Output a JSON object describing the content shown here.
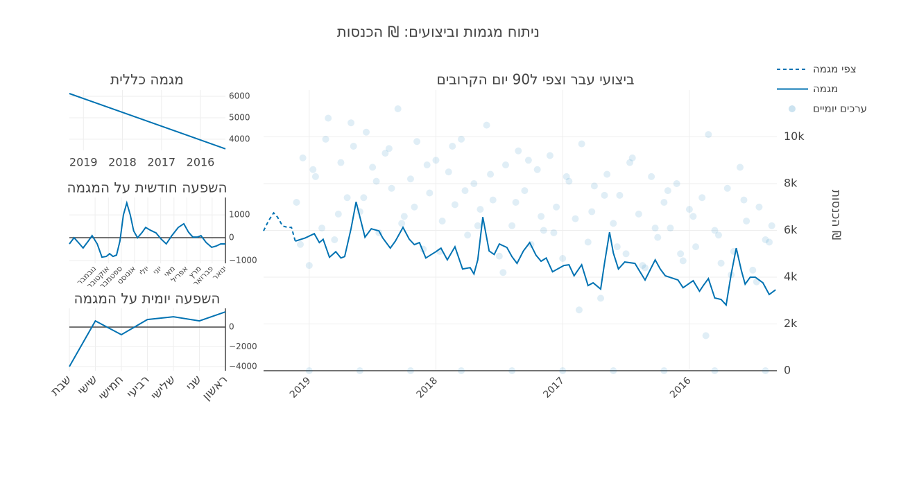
{
  "title": "ניתוח מגמות וביצועים: ₪ הכנסות",
  "chart_data": [
    {
      "type": "line",
      "title": "ביצועי עבר וצפי ל90 יום הקרובים",
      "y_label": "₪ הכנסות",
      "xlim": [
        2019.36,
        2015.31
      ],
      "xticks": [
        2019,
        2018,
        2017,
        2016
      ],
      "ylim": [
        0,
        12000
      ],
      "yticks": [
        0,
        {
          "value": 2000,
          "label": "2k"
        },
        {
          "value": 4000,
          "label": "4k"
        },
        {
          "value": 6000,
          "label": "6k"
        },
        {
          "value": 8000,
          "label": "8k"
        },
        {
          "value": 10000,
          "label": "10k"
        }
      ],
      "grid": true,
      "zeroline": true,
      "legend": "top-right",
      "series": [
        {
          "name": "צפי מגמה",
          "color": "#0072B2",
          "style": "dash",
          "x": [
            2019.36,
            2019.32,
            2019.28,
            2019.25,
            2019.21,
            2019.17,
            2019.14,
            2019.11
          ],
          "values": [
            5980,
            6420,
            6750,
            6570,
            6190,
            6130,
            6130,
            5540
          ]
        },
        {
          "name": "מגמה",
          "color": "#0072B2",
          "style": "solid",
          "x": [
            2019.11,
            2019.03,
            2018.96,
            2018.92,
            2018.89,
            2018.84,
            2018.79,
            2018.75,
            2018.72,
            2018.67,
            2018.63,
            2018.59,
            2018.56,
            2018.51,
            2018.45,
            2018.42,
            2018.36,
            2018.32,
            2018.26,
            2018.21,
            2018.17,
            2018.13,
            2018.08,
            2018.0,
            2017.96,
            2017.91,
            2017.85,
            2017.79,
            2017.73,
            2017.7,
            2017.67,
            2017.63,
            2017.58,
            2017.54,
            2017.5,
            2017.44,
            2017.4,
            2017.36,
            2017.31,
            2017.26,
            2017.21,
            2017.17,
            2017.13,
            2017.08,
            2016.99,
            2016.95,
            2016.91,
            2016.85,
            2016.8,
            2016.76,
            2016.7,
            2016.67,
            2016.63,
            2016.6,
            2016.56,
            2016.51,
            2016.43,
            2016.39,
            2016.35,
            2016.27,
            2016.23,
            2016.19,
            2016.09,
            2016.05,
            2015.97,
            2015.92,
            2015.89,
            2015.85,
            2015.8,
            2015.75,
            2015.71,
            2015.67,
            2015.63,
            2015.59,
            2015.56,
            2015.52,
            2015.48,
            2015.42,
            2015.37,
            2015.32
          ],
          "values": [
            5540,
            5680,
            5860,
            5480,
            5620,
            4850,
            5090,
            4820,
            4880,
            6070,
            7220,
            6360,
            5710,
            6070,
            5980,
            5680,
            5240,
            5540,
            6130,
            5620,
            5390,
            5480,
            4820,
            5090,
            5240,
            4740,
            5300,
            4350,
            4410,
            4140,
            4740,
            6570,
            5120,
            4970,
            5420,
            5270,
            4880,
            4590,
            5120,
            5480,
            4940,
            4680,
            4820,
            4230,
            4500,
            4530,
            4060,
            4530,
            3640,
            3760,
            3490,
            4590,
            5920,
            5030,
            4350,
            4650,
            4590,
            4230,
            3880,
            4740,
            4350,
            4060,
            3880,
            3550,
            3850,
            3400,
            3640,
            3940,
            3110,
            3050,
            2810,
            4140,
            5240,
            4290,
            3700,
            4000,
            4000,
            3760,
            3260,
            3460
          ]
        },
        {
          "name": "ערכים יומיים",
          "color": "#0072B2",
          "style": "markers",
          "x": [
            2019.1,
            2019.05,
            2019.0,
            2018.95,
            2018.9,
            2018.85,
            2018.8,
            2018.75,
            2018.7,
            2018.65,
            2018.6,
            2018.55,
            2018.5,
            2018.45,
            2018.4,
            2018.35,
            2018.3,
            2018.25,
            2018.2,
            2018.15,
            2018.1,
            2018.05,
            2018.0,
            2017.95,
            2017.9,
            2017.85,
            2017.8,
            2017.75,
            2017.7,
            2017.65,
            2017.6,
            2017.55,
            2017.5,
            2017.45,
            2017.4,
            2017.35,
            2017.3,
            2017.25,
            2017.2,
            2017.15,
            2017.1,
            2017.05,
            2017.0,
            2016.95,
            2016.9,
            2016.85,
            2016.8,
            2016.75,
            2016.7,
            2016.65,
            2016.6,
            2016.55,
            2016.5,
            2016.45,
            2016.4,
            2016.35,
            2016.3,
            2016.25,
            2016.2,
            2016.15,
            2016.1,
            2016.05,
            2016.0,
            2015.95,
            2015.9,
            2015.85,
            2015.8,
            2015.75,
            2015.7,
            2015.65,
            2015.6,
            2015.55,
            2015.5,
            2015.45,
            2015.4,
            2015.35,
            2019.07,
            2018.97,
            2018.87,
            2018.77,
            2018.67,
            2018.57,
            2018.47,
            2018.37,
            2018.27,
            2018.17,
            2018.07,
            2017.97,
            2017.87,
            2017.77,
            2017.67,
            2017.57,
            2017.47,
            2017.37,
            2017.27,
            2017.17,
            2017.07,
            2016.97,
            2016.87,
            2016.77,
            2016.67,
            2016.57,
            2016.47,
            2016.37,
            2016.27,
            2016.17,
            2016.07,
            2015.97,
            2015.87,
            2015.77,
            2015.67,
            2015.57,
            2015.47,
            2015.37,
            2019.0,
            2018.6,
            2018.2,
            2017.8,
            2017.4,
            2017.0,
            2016.6,
            2016.2,
            2015.8,
            2015.4
          ],
          "values": [
            7200,
            9100,
            4500,
            8300,
            6100,
            10800,
            5600,
            8900,
            7400,
            9600,
            6800,
            10200,
            8700,
            5900,
            9300,
            7800,
            11200,
            6600,
            8200,
            9800,
            5200,
            7600,
            9000,
            6400,
            8500,
            7100,
            9900,
            5800,
            8000,
            6900,
            10500,
            7300,
            4900,
            8800,
            6200,
            9400,
            7700,
            5400,
            8600,
            6000,
            9200,
            7000,
            4800,
            8100,
            6500,
            9700,
            5500,
            7900,
            3100,
            8400,
            6300,
            7500,
            5000,
            9100,
            6700,
            4400,
            8300,
            5700,
            7200,
            6100,
            8000,
            4700,
            6900,
            5300,
            7400,
            10100,
            6000,
            4600,
            7800,
            5100,
            8700,
            6400,
            4300,
            7000,
            5600,
            6200,
            5400,
            8600,
            9900,
            6700,
            10600,
            7400,
            8100,
            9500,
            6300,
            7000,
            8800,
            5100,
            9600,
            7700,
            6200,
            8400,
            4200,
            7200,
            9000,
            6600,
            5900,
            8300,
            2600,
            6800,
            7500,
            5300,
            8900,
            4500,
            6100,
            7700,
            5000,
            6600,
            1500,
            5800,
            4100,
            7300,
            3800,
            5500,
            0,
            0,
            0,
            0,
            0,
            0,
            0,
            0,
            0,
            0
          ]
        }
      ]
    },
    {
      "type": "line",
      "title": "מגמה כללית",
      "xlim": [
        2019.36,
        2015.36
      ],
      "xticks": [
        2019,
        2018,
        2017,
        2016
      ],
      "ylim": [
        3480,
        6290
      ],
      "yticks": [
        4000,
        5000,
        6000
      ],
      "grid": true,
      "series": [
        {
          "color": "#0072B2",
          "style": "solid",
          "x": [
            2019.36,
            2015.36
          ],
          "values": [
            6130,
            3550
          ]
        }
      ]
    },
    {
      "type": "line",
      "title": "השפעה חודשית על המגמה",
      "xlim": [
        365,
        1
      ],
      "xticks": [
        {
          "value": 1,
          "label": "ינואר"
        },
        {
          "value": 32,
          "label": "פברואר"
        },
        {
          "value": 60,
          "label": "מרץ"
        },
        {
          "value": 91,
          "label": "אפריל"
        },
        {
          "value": 121,
          "label": "מאי"
        },
        {
          "value": 152,
          "label": "יוני"
        },
        {
          "value": 182,
          "label": "יולי"
        },
        {
          "value": 213,
          "label": "אוגוסט"
        },
        {
          "value": 244,
          "label": "ספטמבר"
        },
        {
          "value": 274,
          "label": "אוקטובר"
        },
        {
          "value": 305,
          "label": "נובמבר"
        }
      ],
      "ylim": [
        -1120,
        1760
      ],
      "yticks": [
        {
          "value": -1000,
          "label": "−1000"
        },
        0,
        1000
      ],
      "grid": true,
      "zeroline": true,
      "axis_line": true,
      "series": [
        {
          "color": "#0072B2",
          "style": "solid",
          "x": [
            365,
            354,
            344,
            333,
            321,
            312,
            300,
            289,
            279,
            271,
            263,
            255,
            247,
            239,
            231,
            223,
            215,
            206,
            195,
            187,
            176,
            163,
            151,
            139,
            126,
            111,
            98,
            87,
            77,
            66,
            58,
            46,
            33,
            22,
            12,
            1
          ],
          "values": [
            -270,
            0,
            -210,
            -450,
            -150,
            90,
            -270,
            -850,
            -820,
            -700,
            -820,
            -760,
            -150,
            1000,
            1520,
            1000,
            300,
            0,
            240,
            450,
            330,
            210,
            -60,
            -270,
            90,
            450,
            610,
            240,
            30,
            30,
            90,
            -210,
            -420,
            -360,
            -270,
            -270
          ]
        }
      ]
    },
    {
      "type": "line",
      "title": "השפעה יומית על המגמה",
      "categories": [
        "שבת",
        "שישי",
        "חמישי",
        "רביעי",
        "שלישי",
        "שני",
        "ראשון"
      ],
      "ylim": [
        -4420,
        1900
      ],
      "yticks": [
        {
          "value": -4000,
          "label": "−4000"
        },
        {
          "value": -2000,
          "label": "−2000"
        },
        0
      ],
      "grid": true,
      "zeroline": true,
      "axis_line": true,
      "series": [
        {
          "color": "#0072B2",
          "style": "solid",
          "values": [
            -4000,
            630,
            -770,
            770,
            1050,
            630,
            1540
          ]
        }
      ]
    }
  ]
}
